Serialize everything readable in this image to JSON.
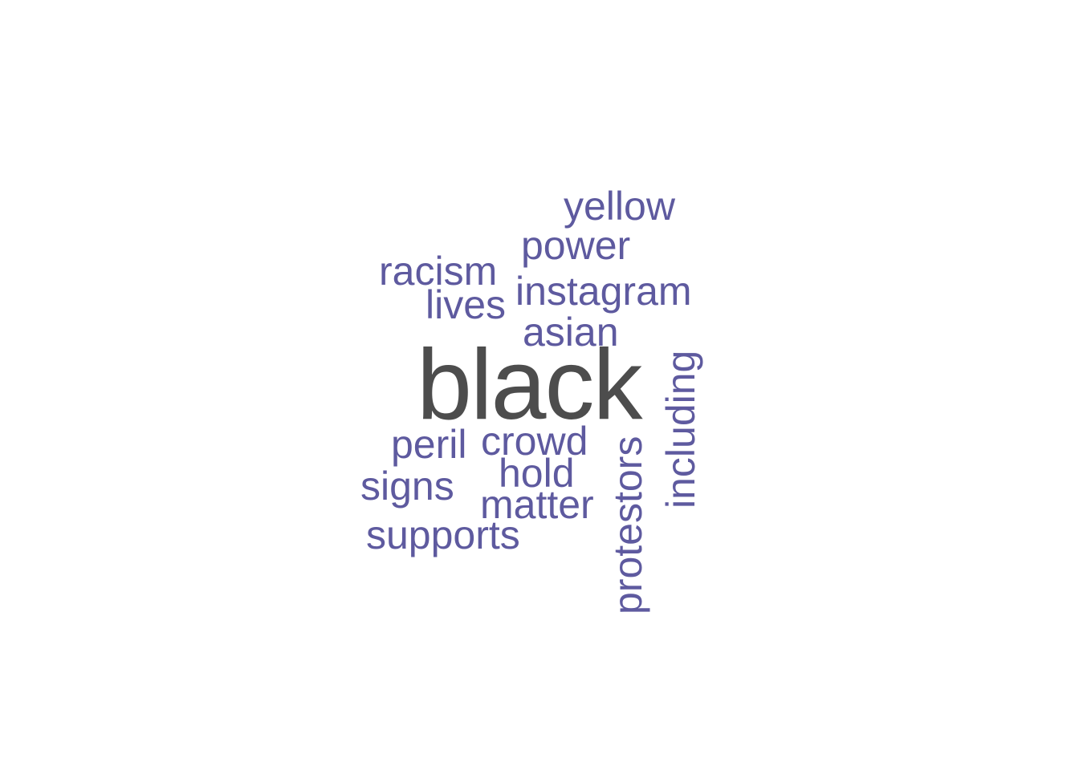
{
  "word_cloud": {
    "colors": {
      "primary": "#4d4d4d",
      "secondary": "#5e5a9f",
      "background": "#ffffff"
    },
    "words": [
      {
        "id": "black",
        "text": "black",
        "orientation": "horizontal",
        "emphasis": "primary"
      },
      {
        "id": "yellow",
        "text": "yellow",
        "orientation": "horizontal",
        "emphasis": "secondary"
      },
      {
        "id": "power",
        "text": "power",
        "orientation": "horizontal",
        "emphasis": "secondary"
      },
      {
        "id": "racism",
        "text": "racism",
        "orientation": "horizontal",
        "emphasis": "secondary"
      },
      {
        "id": "instagram",
        "text": "instagram",
        "orientation": "horizontal",
        "emphasis": "secondary"
      },
      {
        "id": "lives",
        "text": "lives",
        "orientation": "horizontal",
        "emphasis": "secondary"
      },
      {
        "id": "asian",
        "text": "asian",
        "orientation": "horizontal",
        "emphasis": "secondary"
      },
      {
        "id": "peril",
        "text": "peril",
        "orientation": "horizontal",
        "emphasis": "secondary"
      },
      {
        "id": "crowd",
        "text": "crowd",
        "orientation": "horizontal",
        "emphasis": "secondary"
      },
      {
        "id": "hold",
        "text": "hold",
        "orientation": "horizontal",
        "emphasis": "secondary"
      },
      {
        "id": "signs",
        "text": "signs",
        "orientation": "horizontal",
        "emphasis": "secondary"
      },
      {
        "id": "matter",
        "text": "matter",
        "orientation": "horizontal",
        "emphasis": "secondary"
      },
      {
        "id": "supports",
        "text": "supports",
        "orientation": "horizontal",
        "emphasis": "secondary"
      },
      {
        "id": "protestors",
        "text": "protestors",
        "orientation": "vertical",
        "emphasis": "secondary"
      },
      {
        "id": "including",
        "text": "including",
        "orientation": "vertical",
        "emphasis": "secondary"
      }
    ]
  }
}
